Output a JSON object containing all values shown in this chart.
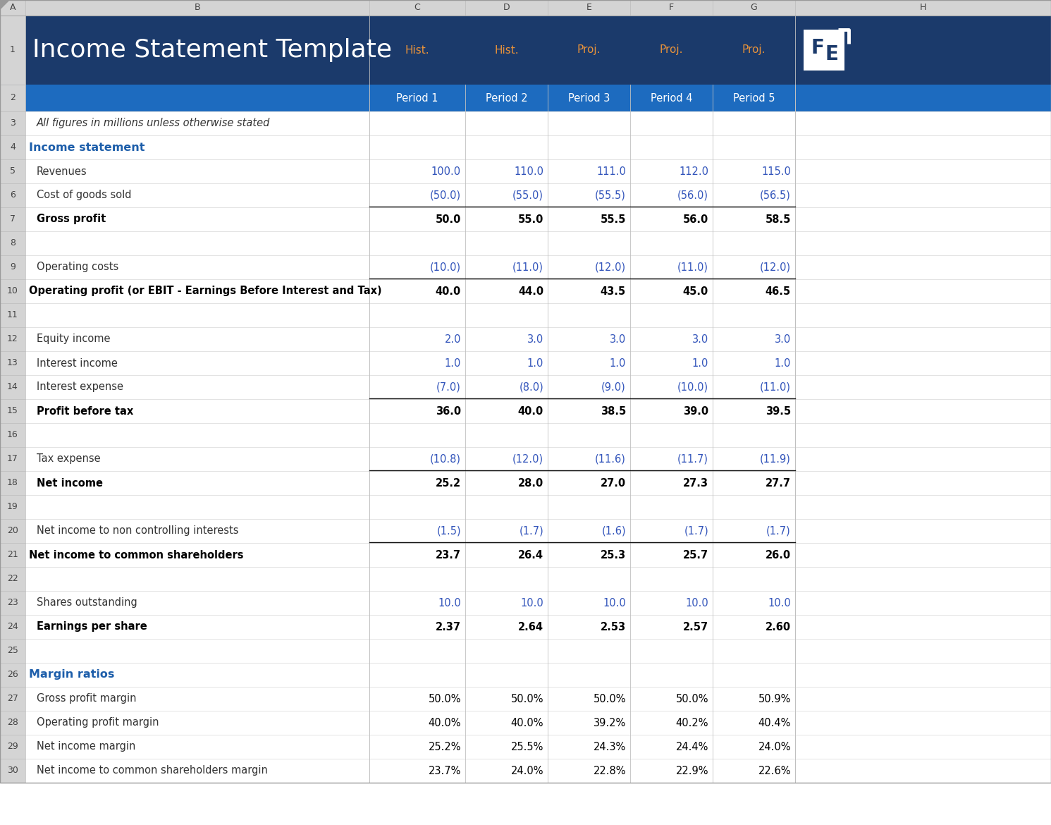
{
  "title": "Income Statement Template",
  "col_letters": [
    "A",
    "B",
    "C",
    "D",
    "E",
    "F",
    "G",
    "H"
  ],
  "header_row1_bg": "#1b3a6b",
  "header_row2_bg": "#1d6bbf",
  "col_header_bg": "#d0d0d0",
  "col_header_text": "#555555",
  "hist_proj_color": "#e8923a",
  "blue_data_color": "#3355bb",
  "section_header_color": "#1d5eaa",
  "row_border_color": "#d0d0d0",
  "periods": [
    "Period 1",
    "Period 2",
    "Period 3",
    "Period 4",
    "Period 5"
  ],
  "hist_proj_labels": [
    "Hist.",
    "Hist.",
    "Proj.",
    "Proj.",
    "Proj."
  ],
  "rows": [
    {
      "row": 3,
      "label": "All figures in millions unless otherwise stated",
      "values": [
        "",
        "",
        "",
        "",
        ""
      ],
      "style": "italic",
      "indent": 1
    },
    {
      "row": 4,
      "label": "Income statement",
      "values": [
        "",
        "",
        "",
        "",
        ""
      ],
      "style": "section_header",
      "indent": 0
    },
    {
      "row": 5,
      "label": "Revenues",
      "values": [
        "100.0",
        "110.0",
        "111.0",
        "112.0",
        "115.0"
      ],
      "style": "blue_data",
      "indent": 1
    },
    {
      "row": 6,
      "label": "Cost of goods sold",
      "values": [
        "(50.0)",
        "(55.0)",
        "(55.5)",
        "(56.0)",
        "(56.5)"
      ],
      "style": "blue_data",
      "indent": 1,
      "border_bottom": true
    },
    {
      "row": 7,
      "label": "Gross profit",
      "values": [
        "50.0",
        "55.0",
        "55.5",
        "56.0",
        "58.5"
      ],
      "style": "bold_black",
      "indent": 1
    },
    {
      "row": 8,
      "label": "",
      "values": [
        "",
        "",
        "",
        "",
        ""
      ],
      "style": "normal",
      "indent": 0
    },
    {
      "row": 9,
      "label": "Operating costs",
      "values": [
        "(10.0)",
        "(11.0)",
        "(12.0)",
        "(11.0)",
        "(12.0)"
      ],
      "style": "blue_data",
      "indent": 1,
      "border_bottom": true
    },
    {
      "row": 10,
      "label": "Operating profit (or EBIT - Earnings Before Interest and Tax)",
      "values": [
        "40.0",
        "44.0",
        "43.5",
        "45.0",
        "46.5"
      ],
      "style": "bold_black",
      "indent": 0
    },
    {
      "row": 11,
      "label": "",
      "values": [
        "",
        "",
        "",
        "",
        ""
      ],
      "style": "normal",
      "indent": 0
    },
    {
      "row": 12,
      "label": "Equity income",
      "values": [
        "2.0",
        "3.0",
        "3.0",
        "3.0",
        "3.0"
      ],
      "style": "blue_data",
      "indent": 1
    },
    {
      "row": 13,
      "label": "Interest income",
      "values": [
        "1.0",
        "1.0",
        "1.0",
        "1.0",
        "1.0"
      ],
      "style": "blue_data",
      "indent": 1
    },
    {
      "row": 14,
      "label": "Interest expense",
      "values": [
        "(7.0)",
        "(8.0)",
        "(9.0)",
        "(10.0)",
        "(11.0)"
      ],
      "style": "blue_data",
      "indent": 1,
      "border_bottom": true
    },
    {
      "row": 15,
      "label": "Profit before tax",
      "values": [
        "36.0",
        "40.0",
        "38.5",
        "39.0",
        "39.5"
      ],
      "style": "bold_black",
      "indent": 1
    },
    {
      "row": 16,
      "label": "",
      "values": [
        "",
        "",
        "",
        "",
        ""
      ],
      "style": "normal",
      "indent": 0
    },
    {
      "row": 17,
      "label": "Tax expense",
      "values": [
        "(10.8)",
        "(12.0)",
        "(11.6)",
        "(11.7)",
        "(11.9)"
      ],
      "style": "blue_data",
      "indent": 1,
      "border_bottom": true
    },
    {
      "row": 18,
      "label": "Net income",
      "values": [
        "25.2",
        "28.0",
        "27.0",
        "27.3",
        "27.7"
      ],
      "style": "bold_black",
      "indent": 1
    },
    {
      "row": 19,
      "label": "",
      "values": [
        "",
        "",
        "",
        "",
        ""
      ],
      "style": "normal",
      "indent": 0
    },
    {
      "row": 20,
      "label": "Net income to non controlling interests",
      "values": [
        "(1.5)",
        "(1.7)",
        "(1.6)",
        "(1.7)",
        "(1.7)"
      ],
      "style": "blue_data",
      "indent": 1,
      "border_bottom": true
    },
    {
      "row": 21,
      "label": "Net income to common shareholders",
      "values": [
        "23.7",
        "26.4",
        "25.3",
        "25.7",
        "26.0"
      ],
      "style": "bold_black",
      "indent": 0
    },
    {
      "row": 22,
      "label": "",
      "values": [
        "",
        "",
        "",
        "",
        ""
      ],
      "style": "normal",
      "indent": 0
    },
    {
      "row": 23,
      "label": "Shares outstanding",
      "values": [
        "10.0",
        "10.0",
        "10.0",
        "10.0",
        "10.0"
      ],
      "style": "blue_data",
      "indent": 1
    },
    {
      "row": 24,
      "label": "Earnings per share",
      "values": [
        "2.37",
        "2.64",
        "2.53",
        "2.57",
        "2.60"
      ],
      "style": "bold_black",
      "indent": 1
    },
    {
      "row": 25,
      "label": "",
      "values": [
        "",
        "",
        "",
        "",
        ""
      ],
      "style": "normal",
      "indent": 0
    },
    {
      "row": 26,
      "label": "Margin ratios",
      "values": [
        "",
        "",
        "",
        "",
        ""
      ],
      "style": "section_header",
      "indent": 0
    },
    {
      "row": 27,
      "label": "Gross profit margin",
      "values": [
        "50.0%",
        "50.0%",
        "50.0%",
        "50.0%",
        "50.9%"
      ],
      "style": "normal_black",
      "indent": 1
    },
    {
      "row": 28,
      "label": "Operating profit margin",
      "values": [
        "40.0%",
        "40.0%",
        "39.2%",
        "40.2%",
        "40.4%"
      ],
      "style": "normal_black",
      "indent": 1
    },
    {
      "row": 29,
      "label": "Net income margin",
      "values": [
        "25.2%",
        "25.5%",
        "24.3%",
        "24.4%",
        "24.0%"
      ],
      "style": "normal_black",
      "indent": 1
    },
    {
      "row": 30,
      "label": "Net income to common shareholders margin",
      "values": [
        "23.7%",
        "24.0%",
        "22.8%",
        "22.9%",
        "22.6%"
      ],
      "style": "normal_black",
      "indent": 1
    }
  ]
}
